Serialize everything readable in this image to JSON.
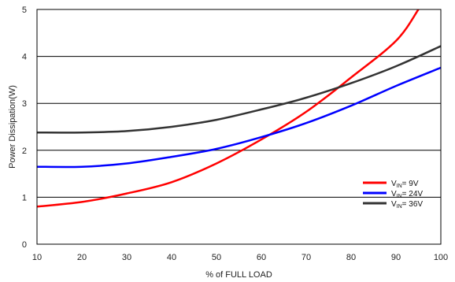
{
  "chart_data": {
    "type": "line",
    "title": "",
    "xlabel": "% of FULL LOAD",
    "ylabel": "Power Dissipation(W)",
    "xlim": [
      10,
      100
    ],
    "ylim": [
      0,
      5
    ],
    "xticks": [
      "10",
      "20",
      "30",
      "40",
      "50",
      "60",
      "70",
      "80",
      "90",
      "100"
    ],
    "yticks": [
      "0",
      "1",
      "2",
      "3",
      "4",
      "5"
    ],
    "grid": "horizontal",
    "legend_position": "bottom-right",
    "series": [
      {
        "name": "VIN= 9V",
        "legend": {
          "main": "V",
          "sub": "IN",
          "rest": "= 9V"
        },
        "color": "#ff0000",
        "x": [
          10,
          20,
          30,
          40,
          50,
          60,
          70,
          80,
          90,
          95
        ],
        "y": [
          0.8,
          0.9,
          1.08,
          1.32,
          1.72,
          2.23,
          2.82,
          3.55,
          4.33,
          5.0
        ]
      },
      {
        "name": "VIN= 24V",
        "legend": {
          "main": "V",
          "sub": "IN",
          "rest": "= 24V"
        },
        "color": "#0000ff",
        "x": [
          10,
          20,
          30,
          40,
          50,
          60,
          70,
          80,
          90,
          100
        ],
        "y": [
          1.65,
          1.65,
          1.72,
          1.86,
          2.03,
          2.28,
          2.58,
          2.95,
          3.37,
          3.76
        ]
      },
      {
        "name": "VIN= 36V",
        "legend": {
          "main": "V",
          "sub": "IN",
          "rest": "= 36V"
        },
        "color": "#333333",
        "x": [
          10,
          20,
          30,
          40,
          50,
          60,
          70,
          80,
          90,
          100
        ],
        "y": [
          2.38,
          2.38,
          2.41,
          2.5,
          2.65,
          2.87,
          3.12,
          3.43,
          3.79,
          4.22
        ]
      }
    ]
  }
}
